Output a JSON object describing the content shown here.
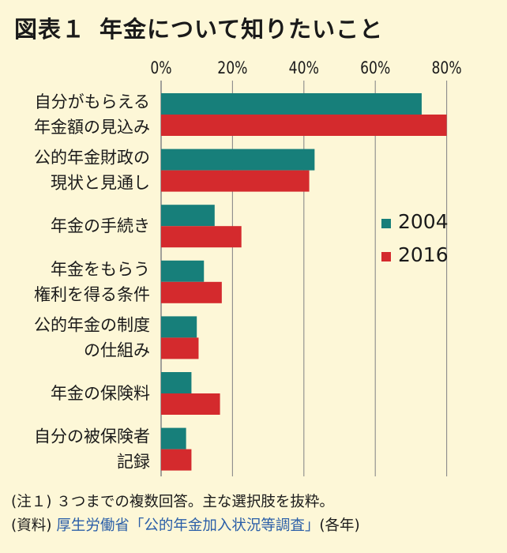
{
  "title": {
    "label": "図表１",
    "text": "年金について知りたいこと"
  },
  "chart_data": {
    "type": "bar",
    "orientation": "horizontal",
    "categories": [
      "自分がもらえる\n年金額の見込み",
      "公的年金財政の\n現状と見通し",
      "年金の手続き",
      "年金をもらう\n権利を得る条件",
      "公的年金の制度\nの仕組み",
      "年金の保険料",
      "自分の被保険者\n記録"
    ],
    "series": [
      {
        "name": "2004",
        "color": "#177f7a",
        "values": [
          73,
          43,
          15,
          12,
          10,
          8.5,
          7
        ]
      },
      {
        "name": "2016",
        "color": "#d42a2d",
        "values": [
          80,
          41.5,
          22.5,
          17,
          10.5,
          16.5,
          8.5
        ]
      }
    ],
    "xlim": [
      0,
      85
    ],
    "xticks": [
      "0%",
      "20%",
      "40%",
      "60%",
      "80%"
    ],
    "xtick_values": [
      0,
      20,
      40,
      60,
      80
    ],
    "grid": true,
    "legend": "right"
  },
  "notes": {
    "note1_label": "(注１)",
    "note1_text": "３つまでの複数回答。主な選択肢を抜粋。",
    "source_label": "(資料)",
    "source_text": "厚生労働省「公的年金加入状況等調査」",
    "source_suffix": "(各年)"
  }
}
